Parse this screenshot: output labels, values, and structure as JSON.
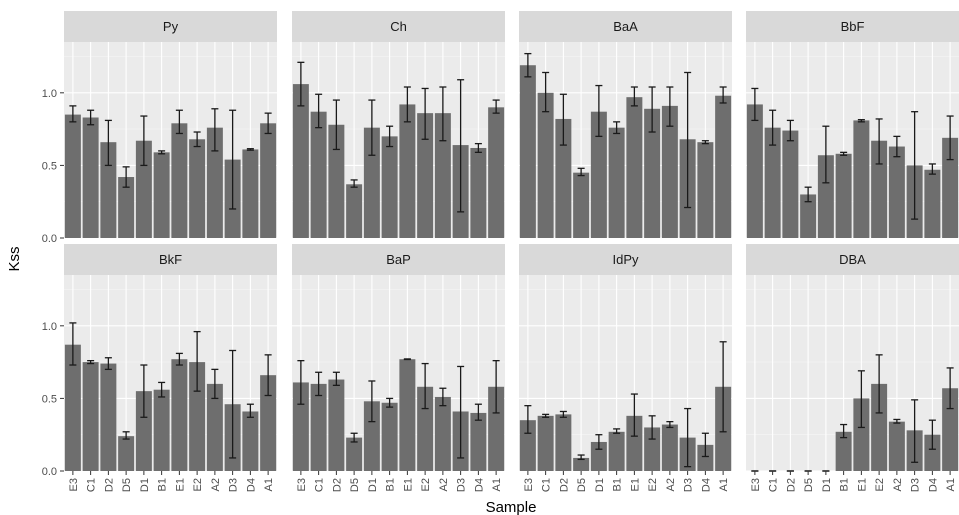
{
  "chart_data": {
    "type": "bar",
    "xlabel": "Sample",
    "ylabel": "Kss",
    "ylim": [
      0,
      1.35
    ],
    "yticks": [
      0.0,
      0.5,
      1.0
    ],
    "ytick_labels": [
      "0.0",
      "0.5",
      "1.0"
    ],
    "categories": [
      "E3",
      "C1",
      "D2",
      "D5",
      "D1",
      "B1",
      "E1",
      "E2",
      "A2",
      "D3",
      "D4",
      "A1"
    ],
    "error_bars": true,
    "grid": true,
    "facets": [
      {
        "name": "Py",
        "values": [
          0.85,
          0.83,
          0.66,
          0.42,
          0.67,
          0.59,
          0.79,
          0.68,
          0.76,
          0.54,
          0.61,
          0.79
        ],
        "low": [
          0.8,
          0.78,
          0.5,
          0.35,
          0.5,
          0.58,
          0.72,
          0.63,
          0.6,
          0.2,
          0.605,
          0.72
        ],
        "high": [
          0.91,
          0.88,
          0.81,
          0.49,
          0.84,
          0.6,
          0.88,
          0.73,
          0.89,
          0.88,
          0.615,
          0.86
        ]
      },
      {
        "name": "Ch",
        "values": [
          1.06,
          0.87,
          0.78,
          0.37,
          0.76,
          0.7,
          0.92,
          0.86,
          0.86,
          0.64,
          0.62,
          0.9
        ],
        "low": [
          0.91,
          0.76,
          0.61,
          0.35,
          0.57,
          0.63,
          0.8,
          0.68,
          0.67,
          0.18,
          0.59,
          0.86
        ],
        "high": [
          1.21,
          0.99,
          0.95,
          0.4,
          0.95,
          0.77,
          1.04,
          1.03,
          1.04,
          1.09,
          0.65,
          0.95
        ]
      },
      {
        "name": "BaA",
        "values": [
          1.19,
          1.0,
          0.82,
          0.45,
          0.87,
          0.76,
          0.97,
          0.89,
          0.91,
          0.68,
          0.66,
          0.98
        ],
        "low": [
          1.11,
          0.87,
          0.64,
          0.43,
          0.7,
          0.72,
          0.91,
          0.73,
          0.77,
          0.21,
          0.65,
          0.93
        ],
        "high": [
          1.27,
          1.14,
          0.99,
          0.48,
          1.05,
          0.8,
          1.04,
          1.04,
          1.04,
          1.14,
          0.67,
          1.04
        ]
      },
      {
        "name": "BbF",
        "values": [
          0.92,
          0.76,
          0.74,
          0.3,
          0.57,
          0.58,
          0.81,
          0.67,
          0.63,
          0.5,
          0.47,
          0.69
        ],
        "low": [
          0.81,
          0.64,
          0.67,
          0.25,
          0.38,
          0.57,
          0.8,
          0.51,
          0.56,
          0.13,
          0.44,
          0.54
        ],
        "high": [
          1.03,
          0.88,
          0.81,
          0.35,
          0.77,
          0.59,
          0.815,
          0.82,
          0.7,
          0.87,
          0.51,
          0.84
        ]
      },
      {
        "name": "BkF",
        "values": [
          0.87,
          0.75,
          0.74,
          0.24,
          0.55,
          0.56,
          0.77,
          0.75,
          0.6,
          0.46,
          0.41,
          0.66
        ],
        "low": [
          0.73,
          0.74,
          0.7,
          0.22,
          0.37,
          0.51,
          0.73,
          0.55,
          0.5,
          0.09,
          0.37,
          0.52
        ],
        "high": [
          1.02,
          0.76,
          0.78,
          0.27,
          0.73,
          0.61,
          0.81,
          0.96,
          0.7,
          0.83,
          0.46,
          0.8
        ]
      },
      {
        "name": "BaP",
        "values": [
          0.61,
          0.6,
          0.63,
          0.23,
          0.48,
          0.47,
          0.77,
          0.58,
          0.51,
          0.41,
          0.4,
          0.58
        ],
        "low": [
          0.46,
          0.52,
          0.59,
          0.2,
          0.34,
          0.44,
          0.768,
          0.43,
          0.45,
          0.09,
          0.35,
          0.4
        ],
        "high": [
          0.76,
          0.68,
          0.68,
          0.26,
          0.62,
          0.5,
          0.772,
          0.74,
          0.57,
          0.72,
          0.46,
          0.76
        ]
      },
      {
        "name": "IdPy",
        "values": [
          0.35,
          0.38,
          0.39,
          0.09,
          0.2,
          0.27,
          0.38,
          0.3,
          0.32,
          0.23,
          0.18,
          0.58
        ],
        "low": [
          0.26,
          0.37,
          0.37,
          0.08,
          0.15,
          0.26,
          0.24,
          0.22,
          0.3,
          0.03,
          0.1,
          0.27
        ],
        "high": [
          0.45,
          0.39,
          0.41,
          0.11,
          0.25,
          0.29,
          0.53,
          0.38,
          0.34,
          0.43,
          0.26,
          0.89
        ]
      },
      {
        "name": "DBA",
        "values": [
          0.0,
          0.0,
          0.0,
          0.0,
          0.0,
          0.27,
          0.5,
          0.6,
          0.34,
          0.28,
          0.25,
          0.57
        ],
        "low": [
          0.0,
          0.0,
          0.0,
          0.0,
          0.0,
          0.23,
          0.3,
          0.4,
          0.33,
          0.06,
          0.15,
          0.43
        ],
        "high": [
          0.0,
          0.0,
          0.0,
          0.0,
          0.0,
          0.32,
          0.69,
          0.8,
          0.355,
          0.49,
          0.35,
          0.71
        ]
      }
    ]
  }
}
